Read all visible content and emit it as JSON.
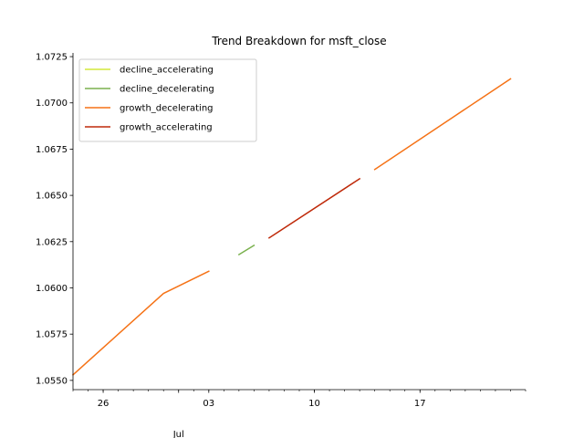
{
  "chart_data": {
    "type": "line",
    "title": "Trend Breakdown for msft_close",
    "xlabel": "",
    "ylabel": "",
    "x_start": "2023-06-24",
    "x_end": "2023-07-24",
    "xlim": [
      "2023-06-24",
      "2023-07-24"
    ],
    "ylim": [
      1.0545,
      1.0727
    ],
    "y_ticks": [
      1.055,
      1.0575,
      1.06,
      1.0625,
      1.065,
      1.0675,
      1.07,
      1.0725
    ],
    "y_tick_labels": [
      "1.0550",
      "1.0575",
      "1.0600",
      "1.0625",
      "1.0650",
      "1.0675",
      "1.0700",
      "1.0725"
    ],
    "x_major_ticks": [
      {
        "date": "2023-06-26",
        "label": "26"
      },
      {
        "date": "2023-07-03",
        "label": "03"
      },
      {
        "date": "2023-07-10",
        "label": "10"
      },
      {
        "date": "2023-07-17",
        "label": "17"
      }
    ],
    "x_month_label": {
      "date": "2023-07-01",
      "label": "Jul"
    },
    "grid": false,
    "legend_position": "top-left",
    "series": [
      {
        "name": "decline_accelerating",
        "color": "#d4e83a",
        "segments": []
      },
      {
        "name": "decline_decelerating",
        "color": "#7ab14e",
        "segments": [
          [
            {
              "x": "2023-07-05",
              "y": 1.0618
            },
            {
              "x": "2023-07-06",
              "y": 1.0623
            }
          ]
        ]
      },
      {
        "name": "growth_decelerating",
        "color": "#f57216",
        "segments": [
          [
            {
              "x": "2023-06-24",
              "y": 1.0553
            },
            {
              "x": "2023-06-30",
              "y": 1.0597
            },
            {
              "x": "2023-07-03",
              "y": 1.0609
            }
          ],
          [
            {
              "x": "2023-07-14",
              "y": 1.0664
            },
            {
              "x": "2023-07-23",
              "y": 1.0713
            }
          ]
        ]
      },
      {
        "name": "growth_accelerating",
        "color": "#bf2a0a",
        "segments": [
          [
            {
              "x": "2023-07-07",
              "y": 1.0627
            },
            {
              "x": "2023-07-13",
              "y": 1.0659
            }
          ]
        ]
      }
    ]
  }
}
